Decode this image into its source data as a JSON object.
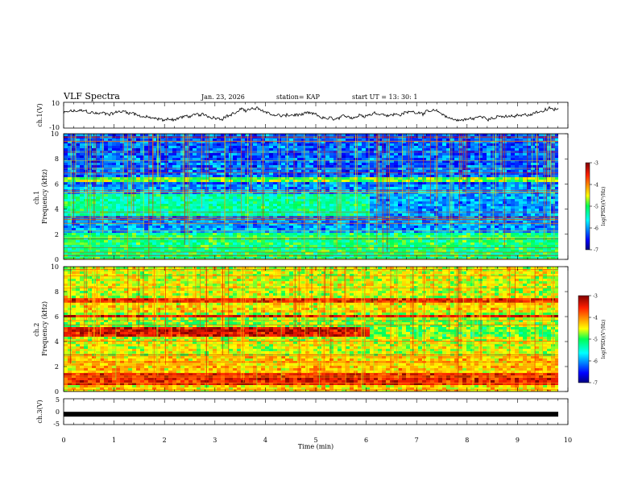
{
  "header": {
    "title": "VLF Spectra",
    "date": "Jan. 23, 2026",
    "station": "station= KAP",
    "start": "start  UT =  13: 30: 1"
  },
  "chart_data": [
    {
      "type": "line",
      "panel": "ch1-waveform",
      "ylabel": "ch.1(V)",
      "ylim": [
        -10,
        10
      ],
      "yticks": [
        "10",
        "-10"
      ],
      "xlim": [
        0,
        10
      ],
      "description_series": "voltage trace, roughly -7 to 8 V"
    },
    {
      "type": "heatmap",
      "panel": "ch1-spectrogram",
      "ylabel": "ch.1\nFrequency (kHz)",
      "ylim": [
        0,
        10
      ],
      "yticks": [
        "0",
        "2",
        "4",
        "6",
        "8",
        "10"
      ],
      "xlim": [
        0,
        10
      ],
      "colorbar": {
        "label": "log(PSD)(V²/Hz)",
        "range": [
          -7,
          -3
        ],
        "ticks": [
          "-3",
          "-4",
          "-5",
          "-6",
          "-7"
        ]
      }
    },
    {
      "type": "heatmap",
      "panel": "ch2-spectrogram",
      "ylabel": "ch.2\nFrequency (kHz)",
      "ylim": [
        0,
        10
      ],
      "yticks": [
        "0",
        "2",
        "4",
        "6",
        "8",
        "10"
      ],
      "xlim": [
        0,
        10
      ],
      "colorbar": {
        "label": "log(PSD)(V²/Hz)",
        "range": [
          -7,
          -3
        ],
        "ticks": [
          "-3",
          "-4",
          "-5",
          "-6",
          "-7"
        ]
      }
    },
    {
      "type": "line",
      "panel": "ch3-waveform",
      "ylabel": "ch.3(V)",
      "ylim": [
        -5,
        5
      ],
      "yticks": [
        "5",
        "0",
        "-5"
      ],
      "xlim": [
        0,
        10
      ],
      "level": -1
    }
  ],
  "xaxis": {
    "label": "Time  (min)",
    "ticks": [
      "0",
      "1",
      "2",
      "3",
      "4",
      "5",
      "6",
      "7",
      "8",
      "9",
      "10"
    ],
    "range": [
      0,
      10
    ]
  }
}
